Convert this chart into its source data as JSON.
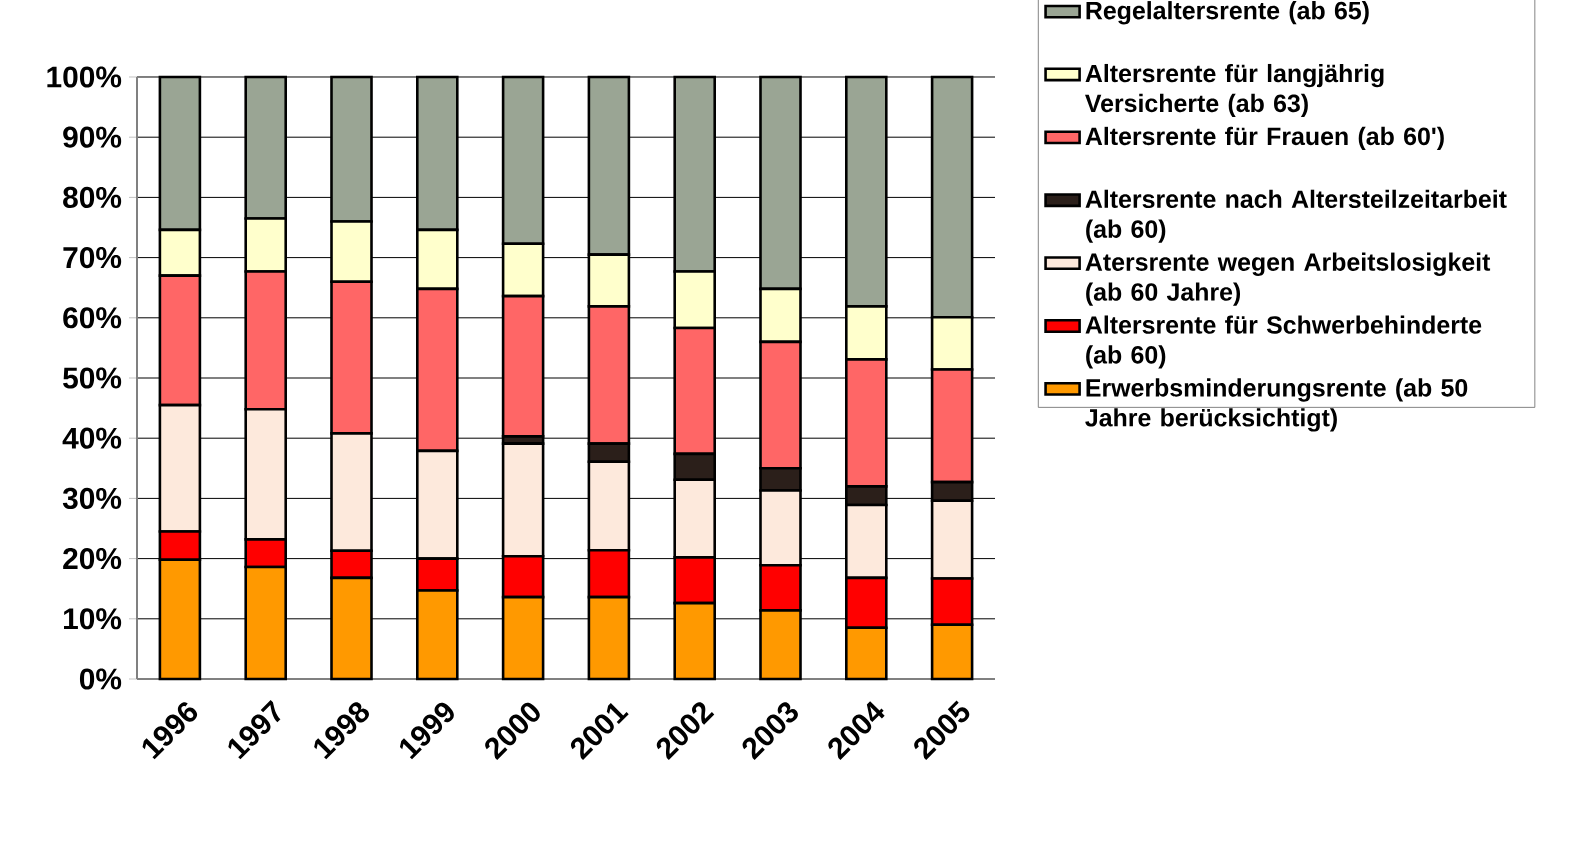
{
  "chart_data": {
    "type": "bar",
    "stacked": true,
    "grid": "y",
    "legend": "right",
    "categories": [
      "1996",
      "1997",
      "1998",
      "1999",
      "2000",
      "2001",
      "2002",
      "2003",
      "2004",
      "2005"
    ],
    "ylim": [
      0,
      100
    ],
    "yticks": [
      {
        "value": 0,
        "label": "0%"
      },
      {
        "value": 10,
        "label": "10%"
      },
      {
        "value": 20,
        "label": "20%"
      },
      {
        "value": 30,
        "label": "30%"
      },
      {
        "value": 40,
        "label": "40%"
      },
      {
        "value": 50,
        "label": "50%"
      },
      {
        "value": 60,
        "label": "60%"
      },
      {
        "value": 70,
        "label": "70%"
      },
      {
        "value": 80,
        "label": "80%"
      },
      {
        "value": 90,
        "label": "90%"
      },
      {
        "value": 100,
        "label": "100%"
      }
    ],
    "series": [
      {
        "name": "Erwerbsminderungsrente (ab 50 Jahre berücksichtigt)",
        "color": "#ff9900",
        "values": [
          19.8,
          18.6,
          16.8,
          14.7,
          13.6,
          13.6,
          12.6,
          11.4,
          8.5,
          9.0
        ]
      },
      {
        "name": "Altersrente für Schwerbehinderte (ab 60)",
        "color": "#ff0000",
        "values": [
          4.7,
          4.6,
          4.5,
          5.3,
          6.8,
          7.8,
          7.6,
          7.5,
          8.3,
          7.7
        ]
      },
      {
        "name": "Atersrente wegen Arbeitslosigkeit (ab 60 Jahre)",
        "color": "#fde9dc",
        "values": [
          21.0,
          21.6,
          19.5,
          17.9,
          18.7,
          14.7,
          12.9,
          12.4,
          12.1,
          12.9
        ]
      },
      {
        "name": "Altersrente nach Altersteilzeitarbeit (ab 60)",
        "color": "#2b1f1a",
        "values": [
          0,
          0,
          0,
          0,
          1.2,
          3.0,
          4.3,
          3.7,
          3.1,
          3.1
        ]
      },
      {
        "name": "Altersrente für Frauen (ab 60')",
        "color": "#ff6666",
        "values": [
          21.5,
          22.9,
          25.2,
          26.9,
          23.3,
          22.8,
          20.9,
          21.0,
          21.1,
          18.7
        ]
      },
      {
        "name": "Altersrente für langjährig Versicherte (ab 63)",
        "color": "#ffffcc",
        "values": [
          7.6,
          8.8,
          10.0,
          9.8,
          8.7,
          8.6,
          9.4,
          8.8,
          8.8,
          8.7
        ]
      },
      {
        "name": "Regelaltersrente (ab 65)",
        "color": "#9aa594",
        "values": [
          25.4,
          23.5,
          24.0,
          25.4,
          27.7,
          29.5,
          32.3,
          35.2,
          38.1,
          39.9
        ]
      }
    ]
  }
}
